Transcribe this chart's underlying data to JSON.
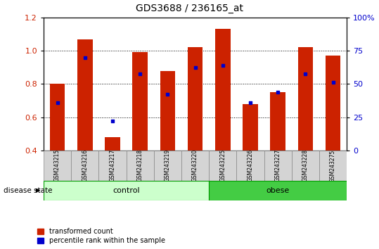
{
  "title": "GDS3688 / 236165_at",
  "samples": [
    "GSM243215",
    "GSM243216",
    "GSM243217",
    "GSM243218",
    "GSM243219",
    "GSM243220",
    "GSM243225",
    "GSM243226",
    "GSM243227",
    "GSM243228",
    "GSM243275"
  ],
  "transformed_count": [
    0.8,
    1.07,
    0.48,
    0.99,
    0.88,
    1.02,
    1.13,
    0.68,
    0.75,
    1.02,
    0.97
  ],
  "percentile_rank": [
    0.69,
    0.96,
    0.58,
    0.86,
    0.74,
    0.9,
    0.91,
    0.69,
    0.75,
    0.86,
    0.81
  ],
  "ylim_left": [
    0.4,
    1.2
  ],
  "ylim_right": [
    0,
    100
  ],
  "left_yticks": [
    0.4,
    0.6,
    0.8,
    1.0,
    1.2
  ],
  "right_yticks": [
    0,
    25,
    50,
    75,
    100
  ],
  "right_ytick_labels": [
    "0",
    "25",
    "50",
    "75",
    "100%"
  ],
  "bar_color": "#cc2200",
  "dot_color": "#0000cc",
  "groups": [
    {
      "label": "control",
      "start": 0,
      "end": 5,
      "color": "#ccffcc",
      "border": "#009900"
    },
    {
      "label": "obese",
      "start": 6,
      "end": 10,
      "color": "#44cc44",
      "border": "#009900"
    }
  ],
  "disease_state_label": "disease state",
  "legend_items": [
    {
      "label": "transformed count",
      "color": "#cc2200"
    },
    {
      "label": "percentile rank within the sample",
      "color": "#0000cc"
    }
  ],
  "bar_width": 0.55,
  "tick_label_color_left": "#cc2200",
  "tick_label_color_right": "#0000cc",
  "sample_box_color": "#d4d4d4",
  "sample_box_border": "#888888"
}
